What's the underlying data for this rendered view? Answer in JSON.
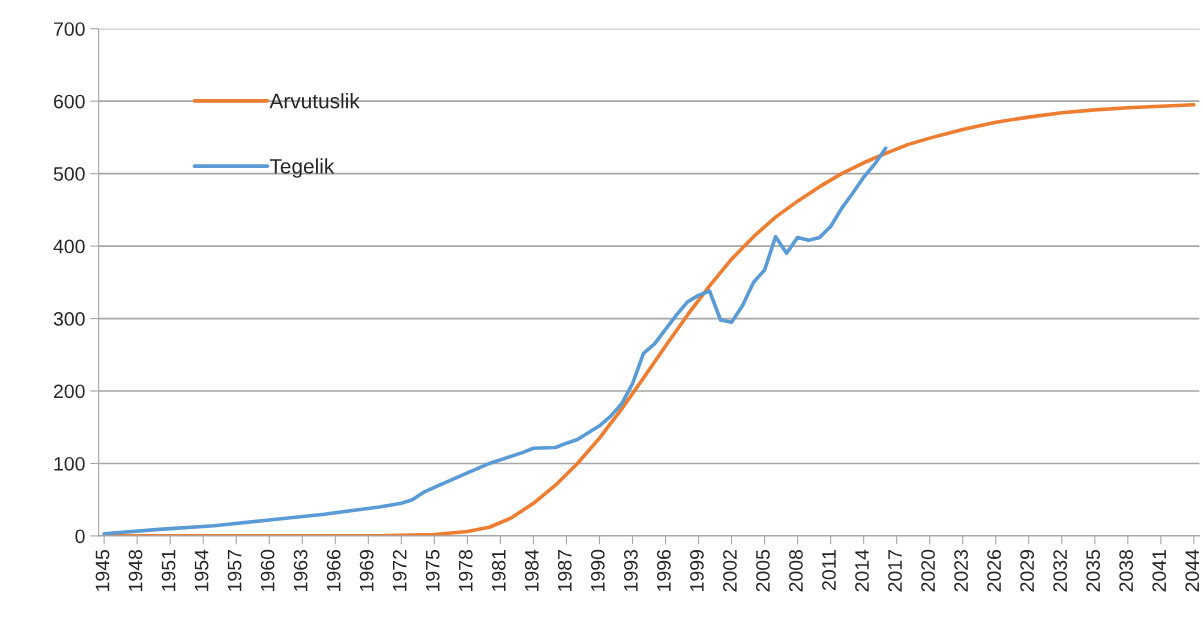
{
  "chart_data": {
    "type": "line",
    "xlim": [
      1944.5,
      2044.5
    ],
    "ylim": [
      0,
      700
    ],
    "xticks": [
      1945,
      1948,
      1951,
      1954,
      1957,
      1960,
      1963,
      1966,
      1969,
      1972,
      1975,
      1978,
      1981,
      1984,
      1987,
      1990,
      1993,
      1996,
      1999,
      2002,
      2005,
      2008,
      2011,
      2014,
      2017,
      2020,
      2023,
      2026,
      2029,
      2032,
      2035,
      2038,
      2041,
      2044
    ],
    "yticks": [
      0,
      100,
      200,
      300,
      400,
      500,
      600,
      700
    ],
    "grid": "y",
    "legend": "top left",
    "marker": "none",
    "line_style": "solid",
    "series": [
      {
        "name": "Arvutuslik",
        "color": "#ed7d31",
        "x": [
          1945,
          1950,
          1955,
          1960,
          1965,
          1970,
          1975,
          1978,
          1980,
          1982,
          1984,
          1986,
          1988,
          1990,
          1992,
          1994,
          1996,
          1998,
          2000,
          2002,
          2004,
          2006,
          2008,
          2010,
          2012,
          2014,
          2016,
          2018,
          2020,
          2023,
          2026,
          2029,
          2032,
          2035,
          2038,
          2041,
          2044
        ],
        "values": [
          0,
          0,
          0,
          0,
          0,
          0,
          2,
          6,
          12,
          25,
          45,
          70,
          100,
          135,
          175,
          218,
          262,
          305,
          345,
          382,
          413,
          440,
          462,
          482,
          500,
          515,
          528,
          540,
          549,
          561,
          571,
          578,
          584,
          588,
          591,
          593,
          595
        ]
      },
      {
        "name": "Tegelik",
        "color": "#5b9bd5",
        "x": [
          1945,
          1950,
          1955,
          1960,
          1965,
          1970,
          1972,
          1973,
          1974,
          1975,
          1978,
          1980,
          1983,
          1984,
          1986,
          1987,
          1988,
          1990,
          1991,
          1992,
          1993,
          1994,
          1995,
          1996,
          1997,
          1998,
          1999,
          2000,
          2001,
          2002,
          2003,
          2004,
          2005,
          2006,
          2007,
          2008,
          2009,
          2010,
          2011,
          2012,
          2013,
          2014,
          2015,
          2016
        ],
        "values": [
          3,
          9,
          14,
          22,
          30,
          40,
          45,
          50,
          60,
          67,
          87,
          100,
          115,
          121,
          122,
          128,
          133,
          152,
          165,
          182,
          210,
          252,
          265,
          285,
          305,
          323,
          332,
          338,
          298,
          295,
          318,
          350,
          367,
          413,
          390,
          412,
          408,
          412,
          427,
          452,
          473,
          495,
          513,
          535
        ]
      }
    ]
  }
}
